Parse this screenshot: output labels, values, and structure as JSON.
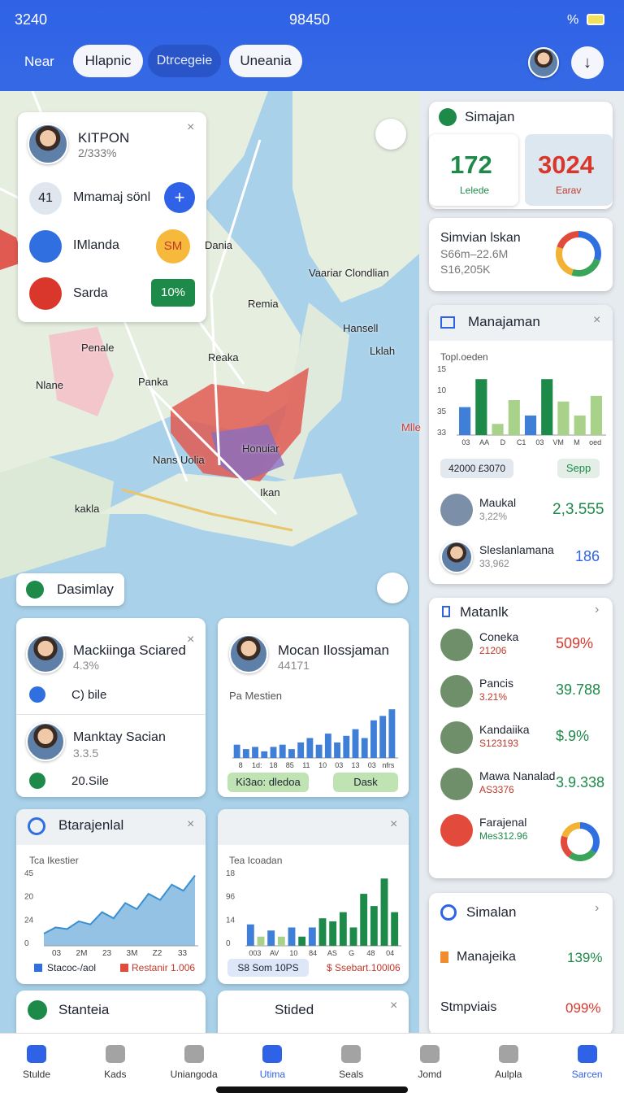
{
  "status": {
    "left": "3240",
    "center": "98450",
    "battery": "%"
  },
  "nav": {
    "label": "Near",
    "tabs": [
      "Hlapnic",
      "Dtrcegeie",
      "Uneania"
    ]
  },
  "map": {
    "labels": [
      "Dania",
      "Vaariar Clondlian",
      "Remia",
      "Hansell",
      "Lklah",
      "Reaka",
      "Penale",
      "Nlane",
      "Panka",
      "Nans Uolia",
      "Honuiar",
      "Ikan",
      "kakla",
      "Mlle"
    ],
    "popup": {
      "title": "KITPON",
      "subtitle": "2/333%",
      "rows": [
        {
          "badge": "41",
          "label": "Mmamaj sönl"
        },
        {
          "badge": "SM",
          "label": "IMlanda"
        },
        {
          "badge": "10%",
          "label": "Sarda"
        }
      ]
    },
    "button": "Dasimlay"
  },
  "people_card": {
    "rows": [
      {
        "name": "Mackiinga Sciared",
        "sub": "4.3%",
        "detail": "C) bile"
      },
      {
        "name": "Manktay Sacian",
        "sub": "3.3.5",
        "detail": "20.Sile"
      }
    ]
  },
  "bar_card": {
    "title": "Mocan Ilossjaman",
    "sub": "44171",
    "chart_title": "Pa Mestien",
    "chart": {
      "type": "bar",
      "color": "#3f7fd8",
      "ylim": [
        0,
        50
      ],
      "values": [
        12,
        8,
        10,
        6,
        10,
        12,
        8,
        14,
        18,
        12,
        22,
        14,
        20,
        26,
        18,
        34,
        38,
        44
      ],
      "x_labels": [
        "8",
        "1d:",
        "18",
        "85",
        "11",
        "10",
        "03",
        "13",
        "03",
        "nfrs"
      ]
    },
    "buttons": [
      "Ki3ao: dledoa",
      "Dask"
    ]
  },
  "area_card": {
    "title": "Btarajenlal",
    "chart_title": "Tca Ikestier",
    "chart": {
      "type": "area",
      "color": "#3a8fd0",
      "ylim": [
        0,
        50
      ],
      "values": [
        8,
        12,
        11,
        16,
        14,
        22,
        18,
        28,
        24,
        34,
        30,
        40,
        36,
        46
      ],
      "y_labels": [
        "45",
        "20",
        "24",
        "0"
      ],
      "x_labels": [
        "03",
        "2M",
        "23",
        "3M",
        "Z2",
        "33"
      ]
    },
    "legend": [
      "Stacoc-/aol",
      "Restanir 1.006"
    ]
  },
  "tea_card": {
    "title": "Tea Icoadan",
    "chart": {
      "type": "bar",
      "ylim": [
        0,
        50
      ],
      "values": [
        14,
        6,
        10,
        6,
        12,
        6,
        12,
        18,
        16,
        22,
        12,
        34,
        26,
        44,
        22
      ],
      "colors": [
        "#3f7fd8",
        "#a8d28a",
        "#3f7fd8",
        "#a8d28a",
        "#3f7fd8",
        "#1e8a4a",
        "#3f7fd8",
        "#1e8a4a",
        "#1e8a4a",
        "#1e8a4a",
        "#1e8a4a",
        "#1e8a4a",
        "#1e8a4a",
        "#1e8a4a",
        "#1e8a4a"
      ],
      "y_labels": [
        "18",
        "96",
        "14",
        "0"
      ],
      "x_labels": [
        "003",
        "AV",
        "10",
        "84",
        "AS",
        "G",
        "48",
        "04"
      ]
    },
    "legend": [
      "S8 Som 10PS",
      "$ Ssebart.100l06"
    ]
  },
  "small_cards": [
    "Stanteia",
    "Stided"
  ],
  "simajan": {
    "title": "Simajan",
    "stats": [
      {
        "value": "172",
        "label": "Lelede"
      },
      {
        "value": "3024",
        "label": "Earav"
      }
    ]
  },
  "simvian": {
    "title": "Simvian lskan",
    "lines": [
      "S66m–22.6M",
      "S16,205K"
    ],
    "donut": {
      "values": [
        30,
        25,
        25,
        20
      ],
      "colors": [
        "#2f6fe0",
        "#3aa55a",
        "#f2b233",
        "#e24b3b"
      ]
    }
  },
  "manajaman": {
    "title": "Manajaman",
    "chart_title": "Topl.oeden",
    "chart": {
      "type": "bar",
      "ylim": [
        0,
        50
      ],
      "values": [
        20,
        40,
        8,
        25,
        14,
        40,
        24,
        14,
        28
      ],
      "colors": [
        "#3f7fd8",
        "#1e8a4a",
        "#a8d28a",
        "#a8d28a",
        "#3f7fd8",
        "#1e8a4a",
        "#a8d28a",
        "#a8d28a",
        "#a8d28a"
      ],
      "y_labels": [
        "15",
        "10",
        "35",
        "33"
      ],
      "x_labels": [
        "03",
        "AA",
        "D",
        "C1",
        "03",
        "VM",
        "M",
        "oed"
      ]
    },
    "pills": [
      "42000 £3070",
      "Sepp"
    ],
    "people": [
      {
        "name": "Maukal",
        "sub": "3,22%",
        "value": "2,3.555"
      },
      {
        "name": "Sleslanlamana",
        "sub": "33,962",
        "value": "186"
      }
    ]
  },
  "matanlk": {
    "title": "Matanlk",
    "rows": [
      {
        "name": "Coneka",
        "sub": "21206",
        "value": "509%"
      },
      {
        "name": "Pancis",
        "sub": "3.21%",
        "value": "39.788"
      },
      {
        "name": "Kandaiika",
        "sub": "S123193",
        "value": "$.9%"
      },
      {
        "name": "Mawa Nanalad",
        "sub": "AS3376",
        "value": "3.9.338"
      },
      {
        "name": "Farajenal",
        "sub": "Mes312.96"
      }
    ],
    "donut": {
      "values": [
        35,
        25,
        20,
        20
      ],
      "colors": [
        "#2f6fe0",
        "#3aa55a",
        "#e24b3b",
        "#f2b233"
      ]
    }
  },
  "simalan": {
    "title": "Simalan",
    "rows": [
      {
        "name": "Manajeika",
        "value": "139%"
      },
      {
        "name": "Stmpviais",
        "value": "099%"
      }
    ]
  },
  "bottom_nav": [
    "Stulde",
    "Kads",
    "Uniangoda",
    "Utima",
    "Seals",
    "Jomd",
    "Aulpla",
    "Sarcen"
  ]
}
